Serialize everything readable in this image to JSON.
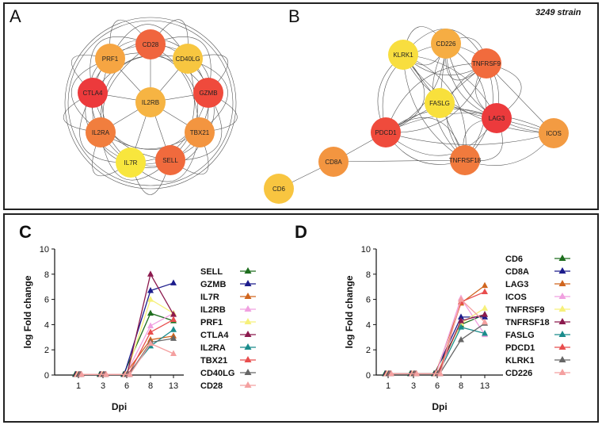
{
  "panels": {
    "A": "A",
    "B": "B",
    "C": "C",
    "D": "D",
    "strain": "3249 strain"
  },
  "colors": {
    "red": "#ee3a3a",
    "orange_red": "#f0653e",
    "orange": "#f3913f",
    "light_orange": "#f7b443",
    "yellow": "#f8e03c",
    "edge": "#555555"
  },
  "network_a": {
    "nodes": [
      {
        "id": "CD28",
        "label": "CD28",
        "color": "#f0653e"
      },
      {
        "id": "CD40LG",
        "label": "CD40LG",
        "color": "#f7c640"
      },
      {
        "id": "GZMB",
        "label": "GZMB",
        "color": "#ef4a3c"
      },
      {
        "id": "TBX21",
        "label": "TBX21",
        "color": "#f39540"
      },
      {
        "id": "SELL",
        "label": "SELL",
        "color": "#f06a3d"
      },
      {
        "id": "IL7R",
        "label": "IL7R",
        "color": "#f8e63d"
      },
      {
        "id": "IL2RA",
        "label": "IL2RA",
        "color": "#f17e3e"
      },
      {
        "id": "CTLA4",
        "label": "CTLA4",
        "color": "#ec3a3c"
      },
      {
        "id": "PRF1",
        "label": "PRF1",
        "color": "#f6a542"
      },
      {
        "id": "IL2RB",
        "label": "IL2RB",
        "color": "#f6b443"
      }
    ]
  },
  "network_b": {
    "nodes": [
      {
        "id": "KLRK1",
        "label": "KLRK1",
        "color": "#f8de3f"
      },
      {
        "id": "CD226",
        "label": "CD226",
        "color": "#f6ad43"
      },
      {
        "id": "TNFRSF9",
        "label": "TNFRSF9",
        "color": "#f16b3d"
      },
      {
        "id": "FASLG",
        "label": "FASLG",
        "color": "#f8e03c"
      },
      {
        "id": "LAG3",
        "label": "LAG3",
        "color": "#ec3a3c"
      },
      {
        "id": "ICOS",
        "label": "ICOS",
        "color": "#f39b42"
      },
      {
        "id": "PDCD1",
        "label": "PDCD1",
        "color": "#ef4b3c"
      },
      {
        "id": "TNFRSF18",
        "label": "TNFRSF18",
        "color": "#f17a3d"
      },
      {
        "id": "CD8A",
        "label": "CD8A",
        "color": "#f39540"
      },
      {
        "id": "CD6",
        "label": "CD6",
        "color": "#f8c540"
      }
    ]
  },
  "chart_data": [
    {
      "type": "line",
      "panel": "C",
      "xlabel": "Dpi",
      "ylabel": "log Fold change",
      "x": [
        1,
        3,
        6,
        8,
        13
      ],
      "yticks": [
        0,
        2,
        4,
        6,
        8,
        10
      ],
      "ylim": [
        0,
        10
      ],
      "series": [
        {
          "name": "SELL",
          "color": "#1e6e1e",
          "marker": "triangle",
          "values": [
            0.05,
            0.05,
            0.05,
            4.9,
            4.3
          ]
        },
        {
          "name": "GZMB",
          "color": "#1c1c8c",
          "marker": "triangle",
          "values": [
            0.05,
            0.05,
            0.05,
            6.7,
            7.3
          ]
        },
        {
          "name": "IL7R",
          "color": "#d0651e",
          "marker": "triangle",
          "values": [
            0.05,
            0.05,
            0.05,
            2.8,
            3.1
          ]
        },
        {
          "name": "IL2RB",
          "color": "#f0a0e0",
          "marker": "triangle",
          "values": [
            0.05,
            0.05,
            0.05,
            3.9,
            4.9
          ]
        },
        {
          "name": "PRF1",
          "color": "#f6f07a",
          "marker": "triangle",
          "values": [
            0.05,
            0.05,
            0.05,
            6.0,
            4.9
          ]
        },
        {
          "name": "CTLA4",
          "color": "#8c1a4e",
          "marker": "triangle",
          "values": [
            0.05,
            0.05,
            0.05,
            8.0,
            4.8
          ]
        },
        {
          "name": "IL2RA",
          "color": "#1a8c8c",
          "marker": "triangle",
          "values": [
            0.05,
            0.05,
            0.05,
            2.3,
            3.6
          ]
        },
        {
          "name": "TBX21",
          "color": "#e84e4e",
          "marker": "triangle",
          "values": [
            0.05,
            0.05,
            0.05,
            3.4,
            4.4
          ]
        },
        {
          "name": "CD40LG",
          "color": "#666666",
          "marker": "triangle",
          "values": [
            0.05,
            0.05,
            0.05,
            2.6,
            2.9
          ]
        },
        {
          "name": "CD28",
          "color": "#f4a0a0",
          "marker": "triangle",
          "values": [
            0.05,
            0.05,
            0.05,
            2.5,
            1.7
          ]
        }
      ]
    },
    {
      "type": "line",
      "panel": "D",
      "xlabel": "Dpi",
      "ylabel": "log Fold change",
      "x": [
        1,
        3,
        6,
        8,
        13
      ],
      "yticks": [
        0,
        2,
        4,
        6,
        8,
        10
      ],
      "ylim": [
        0,
        10
      ],
      "series": [
        {
          "name": "CD6",
          "color": "#1e6e1e",
          "marker": "triangle",
          "values": [
            0.1,
            0.1,
            0.1,
            4.0,
            4.8
          ]
        },
        {
          "name": "CD8A",
          "color": "#1c1c8c",
          "marker": "triangle",
          "values": [
            0.1,
            0.1,
            0.1,
            4.6,
            4.6
          ]
        },
        {
          "name": "LAG3",
          "color": "#d0651e",
          "marker": "triangle",
          "values": [
            0.1,
            0.1,
            0.1,
            5.7,
            7.1
          ]
        },
        {
          "name": "ICOS",
          "color": "#f0a0e0",
          "marker": "triangle",
          "values": [
            0.1,
            0.1,
            0.1,
            6.1,
            3.2
          ]
        },
        {
          "name": "TNFRSF9",
          "color": "#f6f07a",
          "marker": "triangle",
          "values": [
            0.1,
            0.1,
            0.1,
            4.1,
            5.3
          ]
        },
        {
          "name": "TNFRSF18",
          "color": "#8c1a4e",
          "marker": "triangle",
          "values": [
            0.1,
            0.1,
            0.1,
            4.3,
            4.8
          ]
        },
        {
          "name": "FASLG",
          "color": "#1a8c8c",
          "marker": "triangle",
          "values": [
            0.1,
            0.1,
            0.1,
            3.8,
            3.3
          ]
        },
        {
          "name": "PDCD1",
          "color": "#e84e4e",
          "marker": "triangle",
          "values": [
            0.1,
            0.1,
            0.1,
            5.8,
            6.6
          ]
        },
        {
          "name": "KLRK1",
          "color": "#666666",
          "marker": "triangle",
          "values": [
            0.1,
            0.1,
            0.1,
            2.8,
            4.1
          ]
        },
        {
          "name": "CD226",
          "color": "#f4a0a0",
          "marker": "triangle",
          "values": [
            0.1,
            0.1,
            0.1,
            6.0,
            4.2
          ]
        }
      ]
    }
  ]
}
